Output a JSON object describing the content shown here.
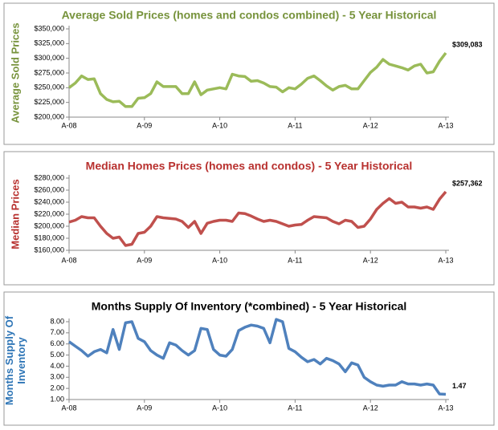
{
  "chart_data": [
    {
      "type": "line",
      "title": "Average Sold Prices (homes and condos combined) - 5 Year Historical",
      "title_color": "#77933c",
      "ylabel": [
        "Average Sold Prices"
      ],
      "ylabel_color": "#77933c",
      "color": "#9bbb59",
      "categories": [
        "A-08",
        null,
        null,
        null,
        null,
        null,
        null,
        null,
        null,
        null,
        null,
        null,
        "A-09",
        null,
        null,
        null,
        null,
        null,
        null,
        null,
        null,
        null,
        null,
        null,
        "A-10",
        null,
        null,
        null,
        null,
        null,
        null,
        null,
        null,
        null,
        null,
        null,
        "A-11",
        null,
        null,
        null,
        null,
        null,
        null,
        null,
        null,
        null,
        null,
        null,
        "A-12",
        null,
        null,
        null,
        null,
        null,
        null,
        null,
        null,
        null,
        null,
        null,
        "A-13"
      ],
      "values": [
        250000,
        258000,
        270000,
        264000,
        265000,
        240000,
        230000,
        226000,
        227000,
        218000,
        218000,
        232000,
        233000,
        240000,
        260000,
        252000,
        252000,
        252000,
        240000,
        240000,
        260000,
        238000,
        246000,
        248000,
        250000,
        248000,
        273000,
        270000,
        269000,
        261000,
        262000,
        258000,
        252000,
        251000,
        243000,
        250000,
        248000,
        256000,
        266000,
        270000,
        262000,
        253000,
        246000,
        252000,
        254000,
        248000,
        248000,
        262000,
        276000,
        285000,
        298000,
        290000,
        287000,
        284000,
        280000,
        287000,
        290000,
        275000,
        277000,
        295000,
        309083
      ],
      "annotation": "$309,083",
      "ylim": [
        200000,
        350000
      ],
      "yticks": [
        {
          "value": 200000,
          "label": "$200,000"
        },
        {
          "value": 225000,
          "label": "$225,000"
        },
        {
          "value": 250000,
          "label": "$250,000"
        },
        {
          "value": 275000,
          "label": "$275,000"
        },
        {
          "value": 300000,
          "label": "$300,000"
        },
        {
          "value": 325000,
          "label": "$325,000"
        },
        {
          "value": 350000,
          "label": "$350,000"
        }
      ]
    },
    {
      "type": "line",
      "title": "Median Homes Prices (homes and condos) - 5 Year Historical",
      "title_color": "#b8312f",
      "ylabel": [
        "Median Prices"
      ],
      "ylabel_color": "#b8312f",
      "color": "#c0504d",
      "categories": [
        "A-08",
        null,
        null,
        null,
        null,
        null,
        null,
        null,
        null,
        null,
        null,
        null,
        "A-09",
        null,
        null,
        null,
        null,
        null,
        null,
        null,
        null,
        null,
        null,
        null,
        "A-10",
        null,
        null,
        null,
        null,
        null,
        null,
        null,
        null,
        null,
        null,
        null,
        "A-11",
        null,
        null,
        null,
        null,
        null,
        null,
        null,
        null,
        null,
        null,
        null,
        "A-12",
        null,
        null,
        null,
        null,
        null,
        null,
        null,
        null,
        null,
        null,
        null,
        "A-13"
      ],
      "values": [
        207000,
        210000,
        216000,
        214000,
        214000,
        200000,
        188000,
        180000,
        182000,
        168000,
        170000,
        188000,
        190000,
        200000,
        216000,
        214000,
        213000,
        212000,
        208000,
        198000,
        208000,
        188000,
        205000,
        208000,
        210000,
        210000,
        208000,
        222000,
        221000,
        217000,
        212000,
        208000,
        210000,
        208000,
        204000,
        200000,
        202000,
        203000,
        210000,
        216000,
        215000,
        214000,
        208000,
        204000,
        210000,
        208000,
        198000,
        200000,
        212000,
        228000,
        238000,
        246000,
        238000,
        240000,
        232000,
        232000,
        230000,
        232000,
        228000,
        245000,
        257362
      ],
      "annotation": "$257,362",
      "ylim": [
        160000,
        280000
      ],
      "yticks": [
        {
          "value": 160000,
          "label": "$160,000"
        },
        {
          "value": 180000,
          "label": "$180,000"
        },
        {
          "value": 200000,
          "label": "$200,000"
        },
        {
          "value": 220000,
          "label": "$220,000"
        },
        {
          "value": 240000,
          "label": "$240,000"
        },
        {
          "value": 260000,
          "label": "$260,000"
        },
        {
          "value": 280000,
          "label": "$280,000"
        }
      ]
    },
    {
      "type": "line",
      "title": "Months Supply Of Inventory (*combined) - 5 Year Historical",
      "title_color": "#000000",
      "ylabel": [
        "Months Supply Of",
        "Inventory"
      ],
      "ylabel_color": "#2e75b6",
      "color": "#4f81bd",
      "categories": [
        "A-08",
        null,
        null,
        null,
        null,
        null,
        null,
        null,
        null,
        null,
        null,
        null,
        "A-09",
        null,
        null,
        null,
        null,
        null,
        null,
        null,
        null,
        null,
        null,
        null,
        "A-10",
        null,
        null,
        null,
        null,
        null,
        null,
        null,
        null,
        null,
        null,
        null,
        "A-11",
        null,
        null,
        null,
        null,
        null,
        null,
        null,
        null,
        null,
        null,
        null,
        "A-12",
        null,
        null,
        null,
        null,
        null,
        null,
        null,
        null,
        null,
        null,
        null,
        "A-13"
      ],
      "values": [
        6.2,
        5.8,
        5.4,
        4.9,
        5.3,
        5.5,
        5.2,
        7.3,
        5.5,
        7.9,
        8.0,
        6.5,
        6.2,
        5.4,
        5.0,
        4.7,
        6.1,
        5.9,
        5.4,
        5.0,
        5.4,
        7.4,
        7.3,
        5.5,
        5.0,
        4.9,
        5.5,
        7.2,
        7.5,
        7.7,
        7.6,
        7.4,
        6.1,
        8.2,
        8.0,
        5.6,
        5.3,
        4.8,
        4.4,
        4.6,
        4.2,
        4.7,
        4.5,
        4.2,
        3.5,
        4.3,
        4.1,
        3.0,
        2.6,
        2.3,
        2.2,
        2.3,
        2.3,
        2.6,
        2.4,
        2.4,
        2.3,
        2.4,
        2.3,
        1.5,
        1.47
      ],
      "annotation": "1.47",
      "ylim": [
        1,
        8
      ],
      "yticks": [
        {
          "value": 1,
          "label": "1.00"
        },
        {
          "value": 2,
          "label": "2.00"
        },
        {
          "value": 3,
          "label": "3.00"
        },
        {
          "value": 4,
          "label": "4.00"
        },
        {
          "value": 5,
          "label": "5.00"
        },
        {
          "value": 6,
          "label": "6.00"
        },
        {
          "value": 7,
          "label": "7.00"
        },
        {
          "value": 8,
          "label": "8.00"
        }
      ]
    }
  ]
}
